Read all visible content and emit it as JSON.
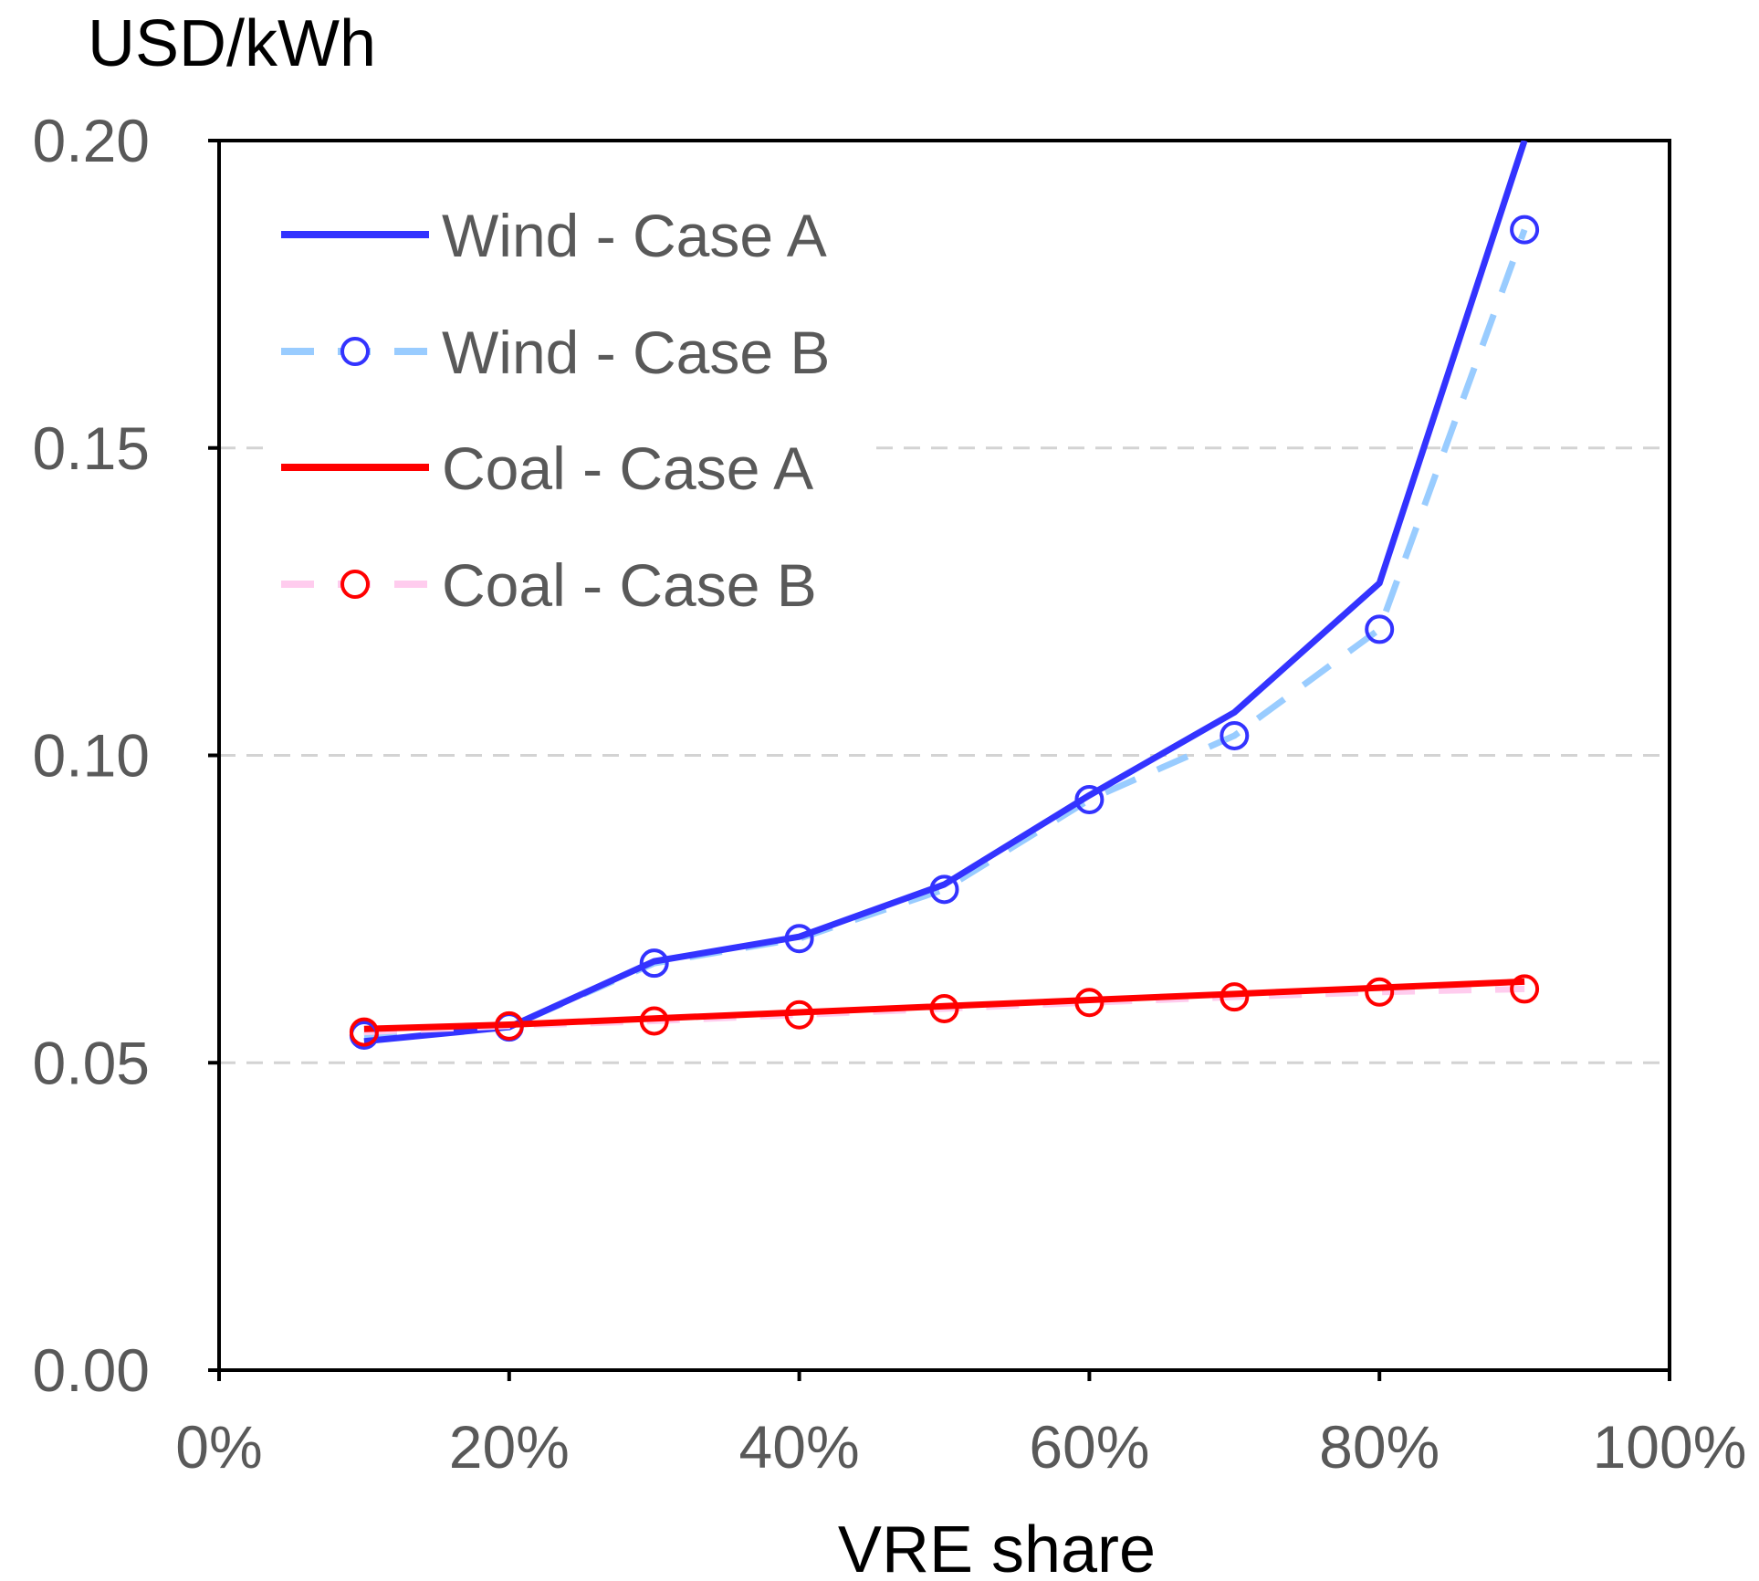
{
  "chart_data": {
    "type": "line",
    "title": "",
    "ylabel": "USD/kWh",
    "xlabel": "VRE share",
    "xlim": [
      0,
      100
    ],
    "ylim": [
      0,
      0.2
    ],
    "x_ticks": [
      "0%",
      "20%",
      "40%",
      "60%",
      "80%",
      "100%"
    ],
    "y_ticks": [
      "0.00",
      "0.05",
      "0.10",
      "0.15",
      "0.20"
    ],
    "x_tick_values": [
      0,
      20,
      40,
      60,
      80,
      100
    ],
    "y_tick_values": [
      0,
      0.05,
      0.1,
      0.15,
      0.2
    ],
    "gridlines": [
      0.05,
      0.1,
      0.15
    ],
    "legend_position": "top-left",
    "x": [
      10,
      20,
      30,
      40,
      50,
      60,
      70,
      80,
      90
    ],
    "series": [
      {
        "name": "Wind - Case A",
        "style": "solid",
        "markers": false,
        "color": "#3333ff",
        "values": [
          0.0535,
          0.0558,
          0.0665,
          0.0705,
          0.079,
          0.0935,
          0.107,
          0.128,
          0.203
        ]
      },
      {
        "name": "Wind - Case B",
        "style": "dashed",
        "markers": true,
        "color": "#99ccff",
        "marker_color": "#3333ff",
        "values": [
          0.0545,
          0.0558,
          0.0662,
          0.0702,
          0.0782,
          0.0928,
          0.1032,
          0.1205,
          0.1855
        ]
      },
      {
        "name": "Coal - Case A",
        "style": "solid",
        "markers": false,
        "color": "#ff0000",
        "values": [
          0.0555,
          0.0562,
          0.0572,
          0.0582,
          0.0592,
          0.0602,
          0.0612,
          0.0622,
          0.0632
        ]
      },
      {
        "name": "Coal - Case B",
        "style": "dashed",
        "markers": true,
        "color": "#ffccee",
        "marker_color": "#ff0000",
        "values": [
          0.055,
          0.056,
          0.0568,
          0.0578,
          0.0588,
          0.0598,
          0.0607,
          0.0615,
          0.062
        ]
      }
    ]
  }
}
